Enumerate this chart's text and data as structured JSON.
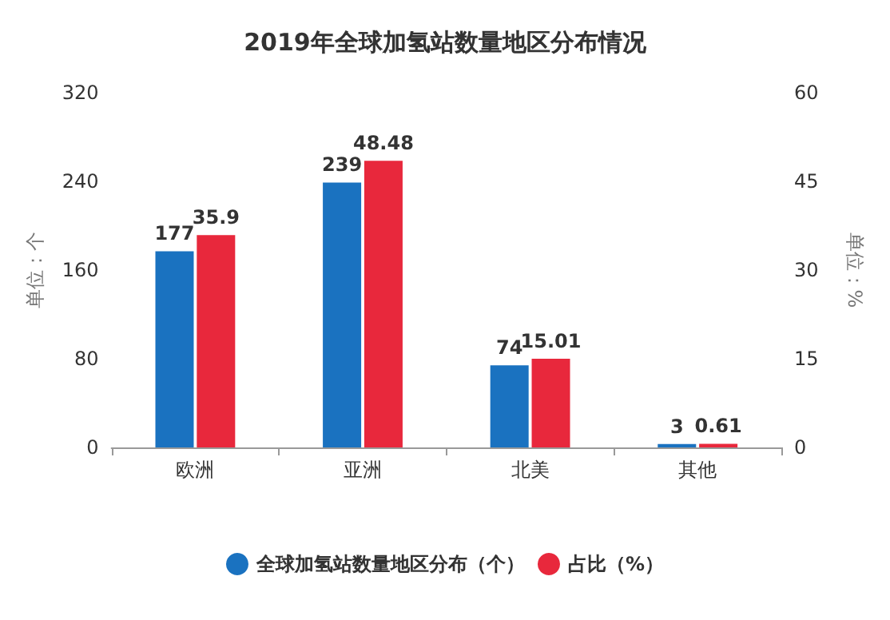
{
  "chart_data": {
    "type": "bar",
    "title": "2019年全球加氢站数量地区分布情况",
    "categories": [
      "欧洲",
      "亚洲",
      "北美",
      "其他"
    ],
    "ylabel": "单位：个",
    "y2label": "单位：%",
    "series": [
      {
        "name": "全球加氢站数量地区分布（个）",
        "color": "#1a72c0",
        "values": [
          177,
          239,
          74,
          3
        ]
      },
      {
        "name": "占比（%）",
        "color": "#e8283c",
        "values": [
          35.9,
          48.48,
          15.01,
          0.61
        ],
        "axis": "y2"
      }
    ],
    "ylim": [
      0,
      320
    ],
    "yticks": [
      0,
      80,
      160,
      240,
      320
    ],
    "y2lim": [
      0,
      60
    ],
    "y2ticks": [
      0,
      15,
      30,
      45,
      60
    ],
    "data_labels": true,
    "grid": false,
    "legend": "bottom",
    "marker": "circle"
  }
}
